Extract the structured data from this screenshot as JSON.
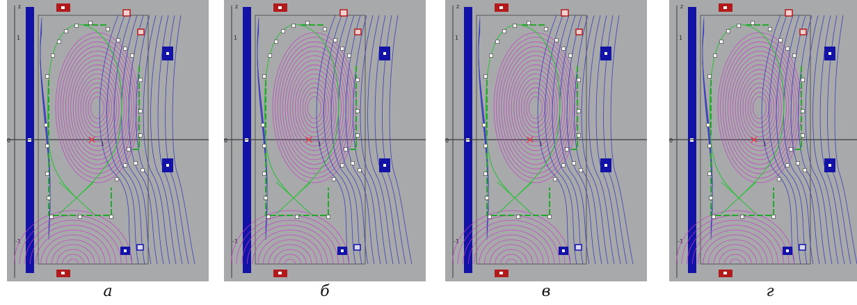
{
  "axis": {
    "z_label": "z",
    "zero_label": "0",
    "r_one_label": "1",
    "z_plus_label": "1",
    "z_minus_label": "-1"
  },
  "panels": [
    {
      "id": "a",
      "caption": "а"
    },
    {
      "id": "b",
      "caption": "б"
    },
    {
      "id": "v",
      "caption": "в"
    },
    {
      "id": "g",
      "caption": "г"
    }
  ],
  "colors": {
    "background": "#a7a9ab",
    "flux_inner": "#c43ec4",
    "flux_outer": "#3b3fb6",
    "separatrix": "#2fbf3a",
    "limiter": "#22a82b",
    "coil": "#1212a6",
    "coil_red": "#b11b1b",
    "probe": "#ffffff",
    "axis_line": "#3a3a3a"
  },
  "icons": [
    "blue-column-coil",
    "red-coil",
    "blue-coil",
    "probe-marker",
    "magnetic-axis-cross"
  ]
}
